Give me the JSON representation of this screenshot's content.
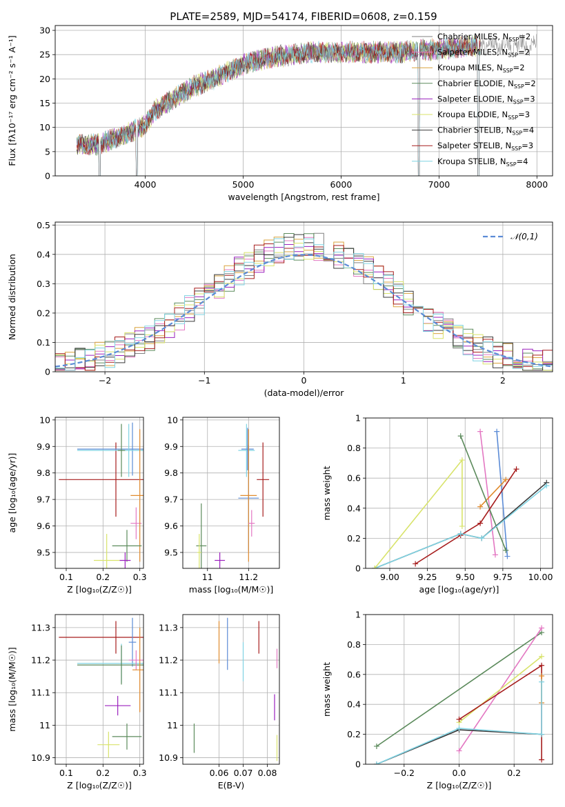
{
  "figure_title": "PLATE=2589, MJD=54174, FIBERID=0608, z=0.159",
  "models": [
    {
      "name": "Chabrier MILES",
      "n": "2",
      "color": "#808080"
    },
    {
      "name": "Salpeter MILES",
      "n": "2",
      "color": "#e377c2"
    },
    {
      "name": "Kroupa MILES",
      "n": "2",
      "color": "#d9a23b"
    },
    {
      "name": "Chabrier ELODIE",
      "n": "2",
      "color": "#5b8a5b"
    },
    {
      "name": "Salpeter ELODIE",
      "n": "3",
      "color": "#9a1fbd"
    },
    {
      "name": "Kroupa ELODIE",
      "n": "3",
      "color": "#d8e36a"
    },
    {
      "name": "Chabrier STELIB",
      "n": "4",
      "color": "#3a3a3a"
    },
    {
      "name": "Salpeter STELIB",
      "n": "3",
      "color": "#a61c1c"
    },
    {
      "name": "Kroupa STELIB",
      "n": "4",
      "color": "#7fd3e3"
    }
  ],
  "chart_data": [
    {
      "id": "spectrum",
      "type": "line",
      "xlabel": "wavelength [Angstrom, rest frame]",
      "ylabel": "Flux [fλ10⁻¹⁷ erg cm⁻² s⁻¹ A⁻¹]",
      "xlim": [
        3080,
        8160
      ],
      "ylim": [
        0,
        31
      ],
      "xticks": [
        4000,
        5000,
        6000,
        7000,
        8000
      ],
      "yticks": [
        0,
        5,
        10,
        15,
        20,
        25,
        30
      ],
      "legend_position": "top-right",
      "continuum": {
        "x": [
          3300,
          3500,
          3800,
          4000,
          4100,
          4300,
          4500,
          4700,
          5000,
          5300,
          5500,
          5700,
          6000,
          6300,
          6600,
          6900,
          7200,
          7500,
          7800,
          8000
        ],
        "y": [
          6.5,
          6.5,
          8.5,
          10.5,
          13.5,
          16,
          18.5,
          20,
          23,
          24.5,
          25,
          25.5,
          25.5,
          25.5,
          25.5,
          26,
          26.5,
          27,
          27,
          27
        ]
      },
      "gaps": [
        [
          3525,
          3540
        ],
        [
          3905,
          3920
        ],
        [
          6785,
          6800
        ],
        [
          7395,
          7410
        ]
      ]
    },
    {
      "id": "residuals",
      "type": "line",
      "xlabel": "(data-model)/error",
      "ylabel": "Normed distribution",
      "xlim": [
        -2.5,
        2.5
      ],
      "ylim": [
        0,
        0.51
      ],
      "xticks": [
        -2,
        -1,
        0,
        1,
        2
      ],
      "yticks": [
        0,
        0.1,
        0.2,
        0.3,
        0.4,
        0.5
      ],
      "reference_label": "𝒩(0,1)",
      "reference_color": "#5b8bd6",
      "bin_width": 0.1,
      "legend_position": "top-right"
    },
    {
      "id": "z-age",
      "type": "scatter",
      "xlabel": "Z [log₁₀(Z/Z☉)]",
      "ylabel": "age  [log₁₀(age/yr)]",
      "xlim": [
        0.07,
        0.31
      ],
      "ylim": [
        9.44,
        10.01
      ],
      "xticks": [
        0.1,
        0.2,
        0.3
      ],
      "yticks": [
        9.5,
        9.6,
        9.7,
        9.8,
        9.9,
        10.0
      ],
      "points": [
        {
          "c": "#a61c1c",
          "x": 0.235,
          "xerr": 0.155,
          "y": 9.775,
          "yerr": 0.14
        },
        {
          "c": "#5b8bd6",
          "x": 0.28,
          "xerr": 0.15,
          "y": 9.89,
          "yerr": 0.1
        },
        {
          "c": "#7fd3e3",
          "x": 0.27,
          "xerr": 0.14,
          "y": 9.885,
          "yerr": 0.1
        },
        {
          "c": "#5b8a5b",
          "x": 0.25,
          "xerr": 0.01,
          "y": 9.885,
          "yerr": 0.1
        },
        {
          "c": "#e377c2",
          "x": 0.29,
          "xerr": 0.015,
          "y": 9.61,
          "yerr": 0.06
        },
        {
          "c": "#e08a2c",
          "x": 0.3,
          "xerr": 0.025,
          "y": 9.715,
          "yerr": 0.25
        },
        {
          "c": "#5b8a5b",
          "x": 0.265,
          "xerr": 0.04,
          "y": 9.525,
          "yerr": 0.06
        },
        {
          "c": "#9a1fbd",
          "x": 0.26,
          "xerr": 0.015,
          "y": 9.47,
          "yerr": 0.03
        },
        {
          "c": "#d8e36a",
          "x": 0.21,
          "xerr": 0.035,
          "y": 9.47,
          "yerr": 0.1
        }
      ]
    },
    {
      "id": "mass-age",
      "type": "scatter",
      "xlabel": "mass [log₁₀(M/M☉)]",
      "ylabel": "",
      "xlim": [
        10.88,
        11.35
      ],
      "ylim": [
        9.44,
        10.01
      ],
      "xticks": [
        11.0,
        11.2
      ],
      "yticks": [
        9.5,
        9.6,
        9.7,
        9.8,
        9.9,
        10.0
      ],
      "points": [
        {
          "c": "#7fd3e3",
          "x": 11.19,
          "xerr": 0.04,
          "y": 9.885,
          "yerr": 0.1
        },
        {
          "c": "#5b8bd6",
          "x": 11.195,
          "xerr": 0.03,
          "y": 9.89,
          "yerr": 0.08
        },
        {
          "c": "#a61c1c",
          "x": 11.27,
          "xerr": 0.03,
          "y": 9.775,
          "yerr": 0.14
        },
        {
          "c": "#5b8bd6",
          "x": 11.2,
          "xerr": 0.05,
          "y": 9.705,
          "yerr": 0.2
        },
        {
          "c": "#e08a2c",
          "x": 11.2,
          "xerr": 0.04,
          "y": 9.715,
          "yerr": 0.25
        },
        {
          "c": "#e377c2",
          "x": 11.215,
          "xerr": 0.015,
          "y": 9.61,
          "yerr": 0.05
        },
        {
          "c": "#5b8a5b",
          "x": 10.97,
          "xerr": 0.025,
          "y": 9.525,
          "yerr": 0.16
        },
        {
          "c": "#9a1fbd",
          "x": 11.06,
          "xerr": 0.025,
          "y": 9.47,
          "yerr": 0.03
        },
        {
          "c": "#d8e36a",
          "x": 10.96,
          "xerr": 0.01,
          "y": 9.5,
          "yerr": 0.07
        }
      ]
    },
    {
      "id": "age-weight",
      "type": "line",
      "xlabel": "age  [log₁₀(age/yr)]",
      "ylabel": "mass weight",
      "xlim": [
        8.84,
        10.08
      ],
      "ylim": [
        0,
        1
      ],
      "xticks": [
        9.0,
        9.25,
        9.5,
        9.75,
        10.0
      ],
      "xtick_labels": [
        "9.00",
        "9.25",
        "9.50",
        "9.75",
        "10.00"
      ],
      "yticks": [
        0,
        0.2,
        0.4,
        0.6,
        0.8,
        1.0
      ],
      "series": [
        {
          "c": "#5b8bd6",
          "x": [
            9.71,
            9.78
          ],
          "y": [
            0.91,
            0.08
          ]
        },
        {
          "c": "#e377c2",
          "x": [
            9.6,
            9.7
          ],
          "y": [
            0.91,
            0.09
          ]
        },
        {
          "c": "#e08a2c",
          "x": [
            9.6,
            9.77
          ],
          "y": [
            0.41,
            0.59
          ]
        },
        {
          "c": "#5b8a5b",
          "x": [
            9.47,
            9.77
          ],
          "y": [
            0.88,
            0.12
          ]
        },
        {
          "c": "#a61c1c",
          "x": [
            9.17,
            9.47,
            9.6,
            9.84
          ],
          "y": [
            0.03,
            0.22,
            0.3,
            0.66
          ]
        },
        {
          "c": "#3a3a3a",
          "x": [
            8.9,
            9.47,
            9.61,
            10.04
          ],
          "y": [
            0.0,
            0.23,
            0.2,
            0.57
          ]
        },
        {
          "c": "#7fd3e3",
          "x": [
            8.9,
            9.47,
            9.61,
            10.04
          ],
          "y": [
            0.0,
            0.23,
            0.2,
            0.55
          ]
        },
        {
          "c": "#d8e36a",
          "x": [
            8.9,
            9.48,
            9.48
          ],
          "y": [
            0.0,
            0.72,
            0.28
          ]
        }
      ]
    },
    {
      "id": "z-mass",
      "type": "scatter",
      "xlabel": "Z [log₁₀(Z/Z☉)]",
      "ylabel": "mass [log₁₀(M/M☉)]",
      "xlim": [
        0.07,
        0.31
      ],
      "ylim": [
        10.88,
        11.34
      ],
      "xticks": [
        0.1,
        0.2,
        0.3
      ],
      "yticks": [
        10.9,
        11.0,
        11.1,
        11.2,
        11.3
      ],
      "points": [
        {
          "c": "#a61c1c",
          "x": 0.235,
          "xerr": 0.155,
          "y": 11.27,
          "yerr": 0.05
        },
        {
          "c": "#5b8bd6",
          "x": 0.28,
          "xerr": 0.01,
          "y": 11.255,
          "yerr": 0.075
        },
        {
          "c": "#7fd3e3",
          "x": 0.25,
          "xerr": 0.12,
          "y": 11.19,
          "yerr": 0.06
        },
        {
          "c": "#5b8a5b",
          "x": 0.25,
          "xerr": 0.12,
          "y": 11.185,
          "yerr": 0.06
        },
        {
          "c": "#e377c2",
          "x": 0.29,
          "xerr": 0.02,
          "y": 11.2,
          "yerr": 0.03
        },
        {
          "c": "#e08a2c",
          "x": 0.3,
          "xerr": 0.02,
          "y": 11.17,
          "yerr": 0.13
        },
        {
          "c": "#9a1fbd",
          "x": 0.24,
          "xerr": 0.035,
          "y": 11.06,
          "yerr": 0.03
        },
        {
          "c": "#5b8a5b",
          "x": 0.265,
          "xerr": 0.04,
          "y": 10.965,
          "yerr": 0.04
        },
        {
          "c": "#d8e36a",
          "x": 0.215,
          "xerr": 0.03,
          "y": 10.94,
          "yerr": 0.04
        }
      ]
    },
    {
      "id": "ebv-mass",
      "type": "scatter",
      "xlabel": "E(B-V)",
      "ylabel": "",
      "xlim": [
        0.045,
        0.085
      ],
      "ylim": [
        10.88,
        11.34
      ],
      "xticks": [
        0.06,
        0.07,
        0.08
      ],
      "yticks": [
        10.9,
        11.0,
        11.1,
        11.2,
        11.3
      ],
      "points": [
        {
          "c": "#e08a2c",
          "x": 0.06,
          "xerr": 0,
          "y": 11.255,
          "yerr": 0.065
        },
        {
          "c": "#5b8bd6",
          "x": 0.0635,
          "xerr": 0,
          "y": 11.25,
          "yerr": 0.08
        },
        {
          "c": "#7fd3e3",
          "x": 0.07,
          "xerr": 0,
          "y": 11.195,
          "yerr": 0.06
        },
        {
          "c": "#a61c1c",
          "x": 0.0765,
          "xerr": 0,
          "y": 11.27,
          "yerr": 0.05
        },
        {
          "c": "#e377c2",
          "x": 0.084,
          "xerr": 0,
          "y": 11.205,
          "yerr": 0.03
        },
        {
          "c": "#9a1fbd",
          "x": 0.083,
          "xerr": 0,
          "y": 11.055,
          "yerr": 0.04
        },
        {
          "c": "#5b8a5b",
          "x": 0.0497,
          "xerr": 0,
          "y": 10.96,
          "yerr": 0.045
        },
        {
          "c": "#d8e36a",
          "x": 0.084,
          "xerr": 0,
          "y": 10.93,
          "yerr": 0.04
        }
      ]
    },
    {
      "id": "z-weight",
      "type": "line",
      "xlabel": "Z [log₁₀(Z/Z☉)]",
      "ylabel": "mass weight",
      "xlim": [
        -0.34,
        0.34
      ],
      "ylim": [
        0,
        1
      ],
      "xticks": [
        -0.2,
        0.0,
        0.2
      ],
      "xtick_labels": [
        "−0.2",
        "0.0",
        "0.2"
      ],
      "yticks": [
        0,
        0.2,
        0.4,
        0.6,
        0.8,
        1.0
      ],
      "series": [
        {
          "c": "#5b8a5b",
          "x": [
            -0.3,
            0.3
          ],
          "y": [
            0.12,
            0.88
          ]
        },
        {
          "c": "#e377c2",
          "x": [
            0.0,
            0.3
          ],
          "y": [
            0.09,
            0.91
          ]
        },
        {
          "c": "#d8e36a",
          "x": [
            0.0,
            0.3
          ],
          "y": [
            0.28,
            0.72
          ]
        },
        {
          "c": "#a61c1c",
          "x": [
            0.0,
            0.3,
            0.3
          ],
          "y": [
            0.3,
            0.66,
            0.03
          ]
        },
        {
          "c": "#e08a2c",
          "x": [
            0.3,
            0.3
          ],
          "y": [
            0.41,
            0.59
          ]
        },
        {
          "c": "#3a3a3a",
          "x": [
            -0.3,
            0.0,
            0.3
          ],
          "y": [
            0.0,
            0.23,
            0.2
          ]
        },
        {
          "c": "#7fd3e3",
          "x": [
            -0.3,
            0.0,
            0.3,
            0.3
          ],
          "y": [
            0.0,
            0.24,
            0.2,
            0.55
          ]
        }
      ]
    }
  ]
}
